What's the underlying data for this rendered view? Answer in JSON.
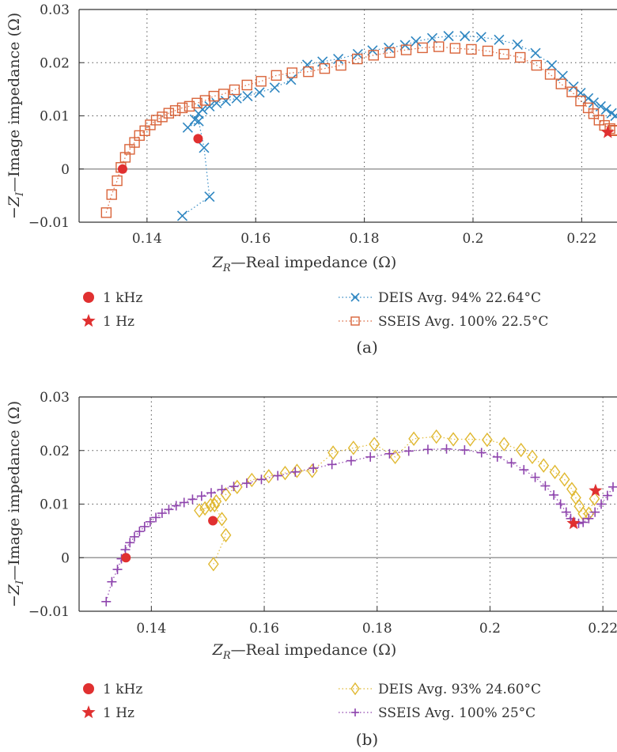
{
  "chart_data": [
    {
      "type": "scatter",
      "panel_label": "(a)",
      "xlabel": "Z_R—Real impedance (Ω)",
      "xlabel_parts": {
        "main": "Z",
        "sub": "R",
        "rest": "—Real impedance (Ω)"
      },
      "ylabel": "−Z_I—Image impedance (Ω)",
      "ylabel_parts": {
        "pre": "−Z",
        "sub": "I",
        "rest": "—Image impedance (Ω)"
      },
      "xlim": [
        0.1275,
        0.2265
      ],
      "ylim": [
        -0.01,
        0.03
      ],
      "xticks": [
        0.14,
        0.16,
        0.18,
        0.2,
        0.22
      ],
      "xtick_labels": [
        "0.14",
        "0.16",
        "0.18",
        "0.2",
        "0.22"
      ],
      "yticks": [
        -0.01,
        0,
        0.01,
        0.02,
        0.03
      ],
      "ytick_labels": [
        "−0.01",
        "0",
        "0.01",
        "0.02",
        "0.03"
      ],
      "grid": true,
      "series": [
        {
          "name": "DEIS Avg. 94% 22.64°C",
          "marker": "x",
          "color": "#2e86c1",
          "x": [
            0.1465,
            0.1515,
            0.1505,
            0.1495,
            0.1475,
            0.1488,
            0.1495,
            0.1502,
            0.1515,
            0.1528,
            0.1545,
            0.1565,
            0.1585,
            0.1607,
            0.1635,
            0.1665,
            0.1695,
            0.1723,
            0.1752,
            0.1788,
            0.1815,
            0.1845,
            0.1875,
            0.1895,
            0.1925,
            0.1955,
            0.1985,
            0.2015,
            0.2048,
            0.2082,
            0.2115,
            0.2145,
            0.2165,
            0.2185,
            0.2198,
            0.2212,
            0.2222,
            0.2235,
            0.2245,
            0.2255,
            0.2262
          ],
          "y": [
            -0.0088,
            -0.0052,
            0.004,
            0.009,
            0.0078,
            0.0093,
            0.0104,
            0.0112,
            0.0118,
            0.0124,
            0.0128,
            0.0133,
            0.0137,
            0.0144,
            0.0153,
            0.0168,
            0.0196,
            0.0202,
            0.0207,
            0.0216,
            0.0223,
            0.0228,
            0.0233,
            0.024,
            0.0246,
            0.025,
            0.025,
            0.0248,
            0.0243,
            0.0234,
            0.0218,
            0.0195,
            0.0175,
            0.0155,
            0.0143,
            0.0133,
            0.0125,
            0.0118,
            0.0112,
            0.0105,
            0.01
          ]
        },
        {
          "name": "SSEIS Avg. 100% 22.5°C",
          "marker": "square",
          "color": "#d9643a",
          "x": [
            0.1325,
            0.1335,
            0.1345,
            0.1352,
            0.136,
            0.1368,
            0.1377,
            0.1386,
            0.1396,
            0.1406,
            0.1417,
            0.1428,
            0.144,
            0.1452,
            0.1465,
            0.1478,
            0.1492,
            0.1507,
            0.1523,
            0.1541,
            0.1561,
            0.1584,
            0.161,
            0.1638,
            0.1667,
            0.1697,
            0.1727,
            0.1757,
            0.1787,
            0.1817,
            0.1847,
            0.1877,
            0.1907,
            0.1937,
            0.1967,
            0.1997,
            0.2027,
            0.2057,
            0.2087,
            0.2117,
            0.2142,
            0.2162,
            0.2182,
            0.2198,
            0.2212,
            0.2222,
            0.2232,
            0.2242,
            0.2252,
            0.2258,
            0.2262
          ],
          "y": [
            -0.0082,
            -0.0048,
            -0.0022,
            0.0003,
            0.0022,
            0.0037,
            0.005,
            0.0063,
            0.0072,
            0.0083,
            0.0092,
            0.0098,
            0.0105,
            0.011,
            0.0115,
            0.0118,
            0.0124,
            0.0129,
            0.0137,
            0.0141,
            0.0149,
            0.0158,
            0.0165,
            0.0176,
            0.0181,
            0.0183,
            0.0189,
            0.0195,
            0.0207,
            0.0214,
            0.0219,
            0.0224,
            0.0228,
            0.023,
            0.0227,
            0.0225,
            0.0222,
            0.0216,
            0.021,
            0.0195,
            0.0178,
            0.016,
            0.0145,
            0.0128,
            0.0115,
            0.0104,
            0.0092,
            0.0082,
            0.0076,
            0.0073,
            0.0072
          ]
        }
      ],
      "markers": [
        {
          "name": "1 kHz",
          "symbol": "circle",
          "color": "#e03030",
          "points": [
            [
              0.1355,
              0.0
            ],
            [
              0.1494,
              0.0057
            ]
          ]
        },
        {
          "name": "1 Hz",
          "symbol": "star",
          "color": "#e03030",
          "points": [
            [
              0.2248,
              0.0069
            ]
          ]
        }
      ]
    },
    {
      "type": "scatter",
      "panel_label": "(b)",
      "xlabel": "Z_R—Real impedance (Ω)",
      "xlabel_parts": {
        "main": "Z",
        "sub": "R",
        "rest": "—Real impedance (Ω)"
      },
      "ylabel": "−Z_I—Image impedance (Ω)",
      "ylabel_parts": {
        "pre": "−Z",
        "sub": "I",
        "rest": "—Image impedance (Ω)"
      },
      "xlim": [
        0.1272,
        0.2225
      ],
      "ylim": [
        -0.01,
        0.03
      ],
      "xticks": [
        0.14,
        0.16,
        0.18,
        0.2,
        0.22
      ],
      "xtick_labels": [
        "0.14",
        "0.16",
        "0.18",
        "0.2",
        "0.22"
      ],
      "yticks": [
        -0.01,
        0,
        0.01,
        0.02,
        0.03
      ],
      "ytick_labels": [
        "−0.01",
        "0",
        "0.01",
        "0.02",
        "0.03"
      ],
      "grid": true,
      "series": [
        {
          "name": "DEIS Avg. 93% 24.60°C",
          "marker": "diamond",
          "color": "#e0b830",
          "x": [
            0.151,
            0.1532,
            0.1525,
            0.1512,
            0.1485,
            0.1495,
            0.1505,
            0.1515,
            0.1532,
            0.1552,
            0.1578,
            0.1608,
            0.1637,
            0.1658,
            0.1685,
            0.1722,
            0.1758,
            0.1795,
            0.1832,
            0.1865,
            0.1905,
            0.1935,
            0.1965,
            0.1995,
            0.2025,
            0.2055,
            0.2075,
            0.2095,
            0.2115,
            0.2132,
            0.2145,
            0.2152,
            0.2158,
            0.2165,
            0.2175,
            0.2185
          ],
          "y": [
            -0.0012,
            0.0042,
            0.0072,
            0.0098,
            0.0088,
            0.0092,
            0.0098,
            0.0105,
            0.0118,
            0.0132,
            0.0145,
            0.0152,
            0.0158,
            0.0162,
            0.0162,
            0.0196,
            0.0205,
            0.0212,
            0.0188,
            0.0222,
            0.0226,
            0.0221,
            0.0221,
            0.022,
            0.0212,
            0.0201,
            0.0188,
            0.0172,
            0.016,
            0.0146,
            0.0128,
            0.0112,
            0.0096,
            0.0082,
            0.0082,
            0.011
          ]
        },
        {
          "name": "SSEIS Avg. 100% 25°C",
          "marker": "plus",
          "color": "#8e44ad",
          "x": [
            0.132,
            0.133,
            0.134,
            0.1347,
            0.1354,
            0.1362,
            0.137,
            0.1379,
            0.1388,
            0.1398,
            0.1408,
            0.1419,
            0.1431,
            0.1444,
            0.1458,
            0.1473,
            0.1489,
            0.1506,
            0.1525,
            0.1546,
            0.1569,
            0.1595,
            0.1624,
            0.1655,
            0.1687,
            0.172,
            0.1754,
            0.1788,
            0.1822,
            0.1856,
            0.189,
            0.1923,
            0.1955,
            0.1985,
            0.2013,
            0.2038,
            0.206,
            0.208,
            0.2098,
            0.2113,
            0.2125,
            0.2135,
            0.2143,
            0.215,
            0.2157,
            0.2165,
            0.2175,
            0.2186,
            0.2197,
            0.2208,
            0.2218
          ],
          "y": [
            -0.0082,
            -0.0045,
            -0.0022,
            -0.0002,
            0.0015,
            0.0028,
            0.0039,
            0.0049,
            0.0058,
            0.0067,
            0.0075,
            0.0083,
            0.009,
            0.0097,
            0.0103,
            0.0109,
            0.0115,
            0.0121,
            0.0127,
            0.0133,
            0.0139,
            0.0146,
            0.0153,
            0.016,
            0.0167,
            0.0174,
            0.0181,
            0.0188,
            0.0194,
            0.0199,
            0.0202,
            0.0203,
            0.0201,
            0.0196,
            0.0188,
            0.0177,
            0.0164,
            0.015,
            0.0134,
            0.0117,
            0.01,
            0.0085,
            0.0073,
            0.0066,
            0.0064,
            0.0066,
            0.0073,
            0.0085,
            0.01,
            0.0116,
            0.0132
          ]
        }
      ],
      "markers": [
        {
          "name": "1 kHz",
          "symbol": "circle",
          "color": "#e03030",
          "points": [
            [
              0.1355,
              0.0
            ],
            [
              0.1509,
              0.0069
            ]
          ]
        },
        {
          "name": "1 Hz",
          "symbol": "star",
          "color": "#e03030",
          "points": [
            [
              0.2148,
              0.0064
            ],
            [
              0.2187,
              0.0125
            ]
          ]
        }
      ]
    }
  ]
}
